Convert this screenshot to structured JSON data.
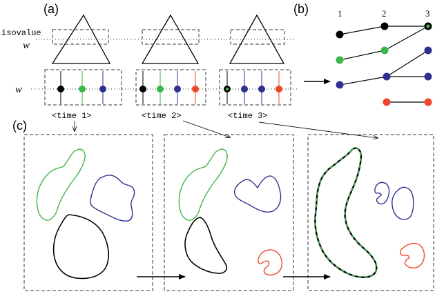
{
  "panel_labels": {
    "a": "(a)",
    "b": "(b)",
    "c": "(c)"
  },
  "axis_labels": {
    "isovalue": "isovalue",
    "w_top": "w",
    "w_bottom": "w"
  },
  "time_labels": [
    "<time 1>",
    "<time 2>",
    "<time 3>"
  ],
  "graph_column_labels": [
    "1",
    "2",
    "3"
  ],
  "colors": {
    "black": "#000000",
    "green": "#3cb54a",
    "blue": "#2e3192",
    "red": "#f0452b",
    "box": "#333333"
  },
  "components": {
    "time_1": [
      "black",
      "green",
      "blue"
    ],
    "time_2": [
      "black",
      "green",
      "blue",
      "red"
    ],
    "time_3": [
      "black-green",
      "blue",
      "blue",
      "red"
    ]
  }
}
